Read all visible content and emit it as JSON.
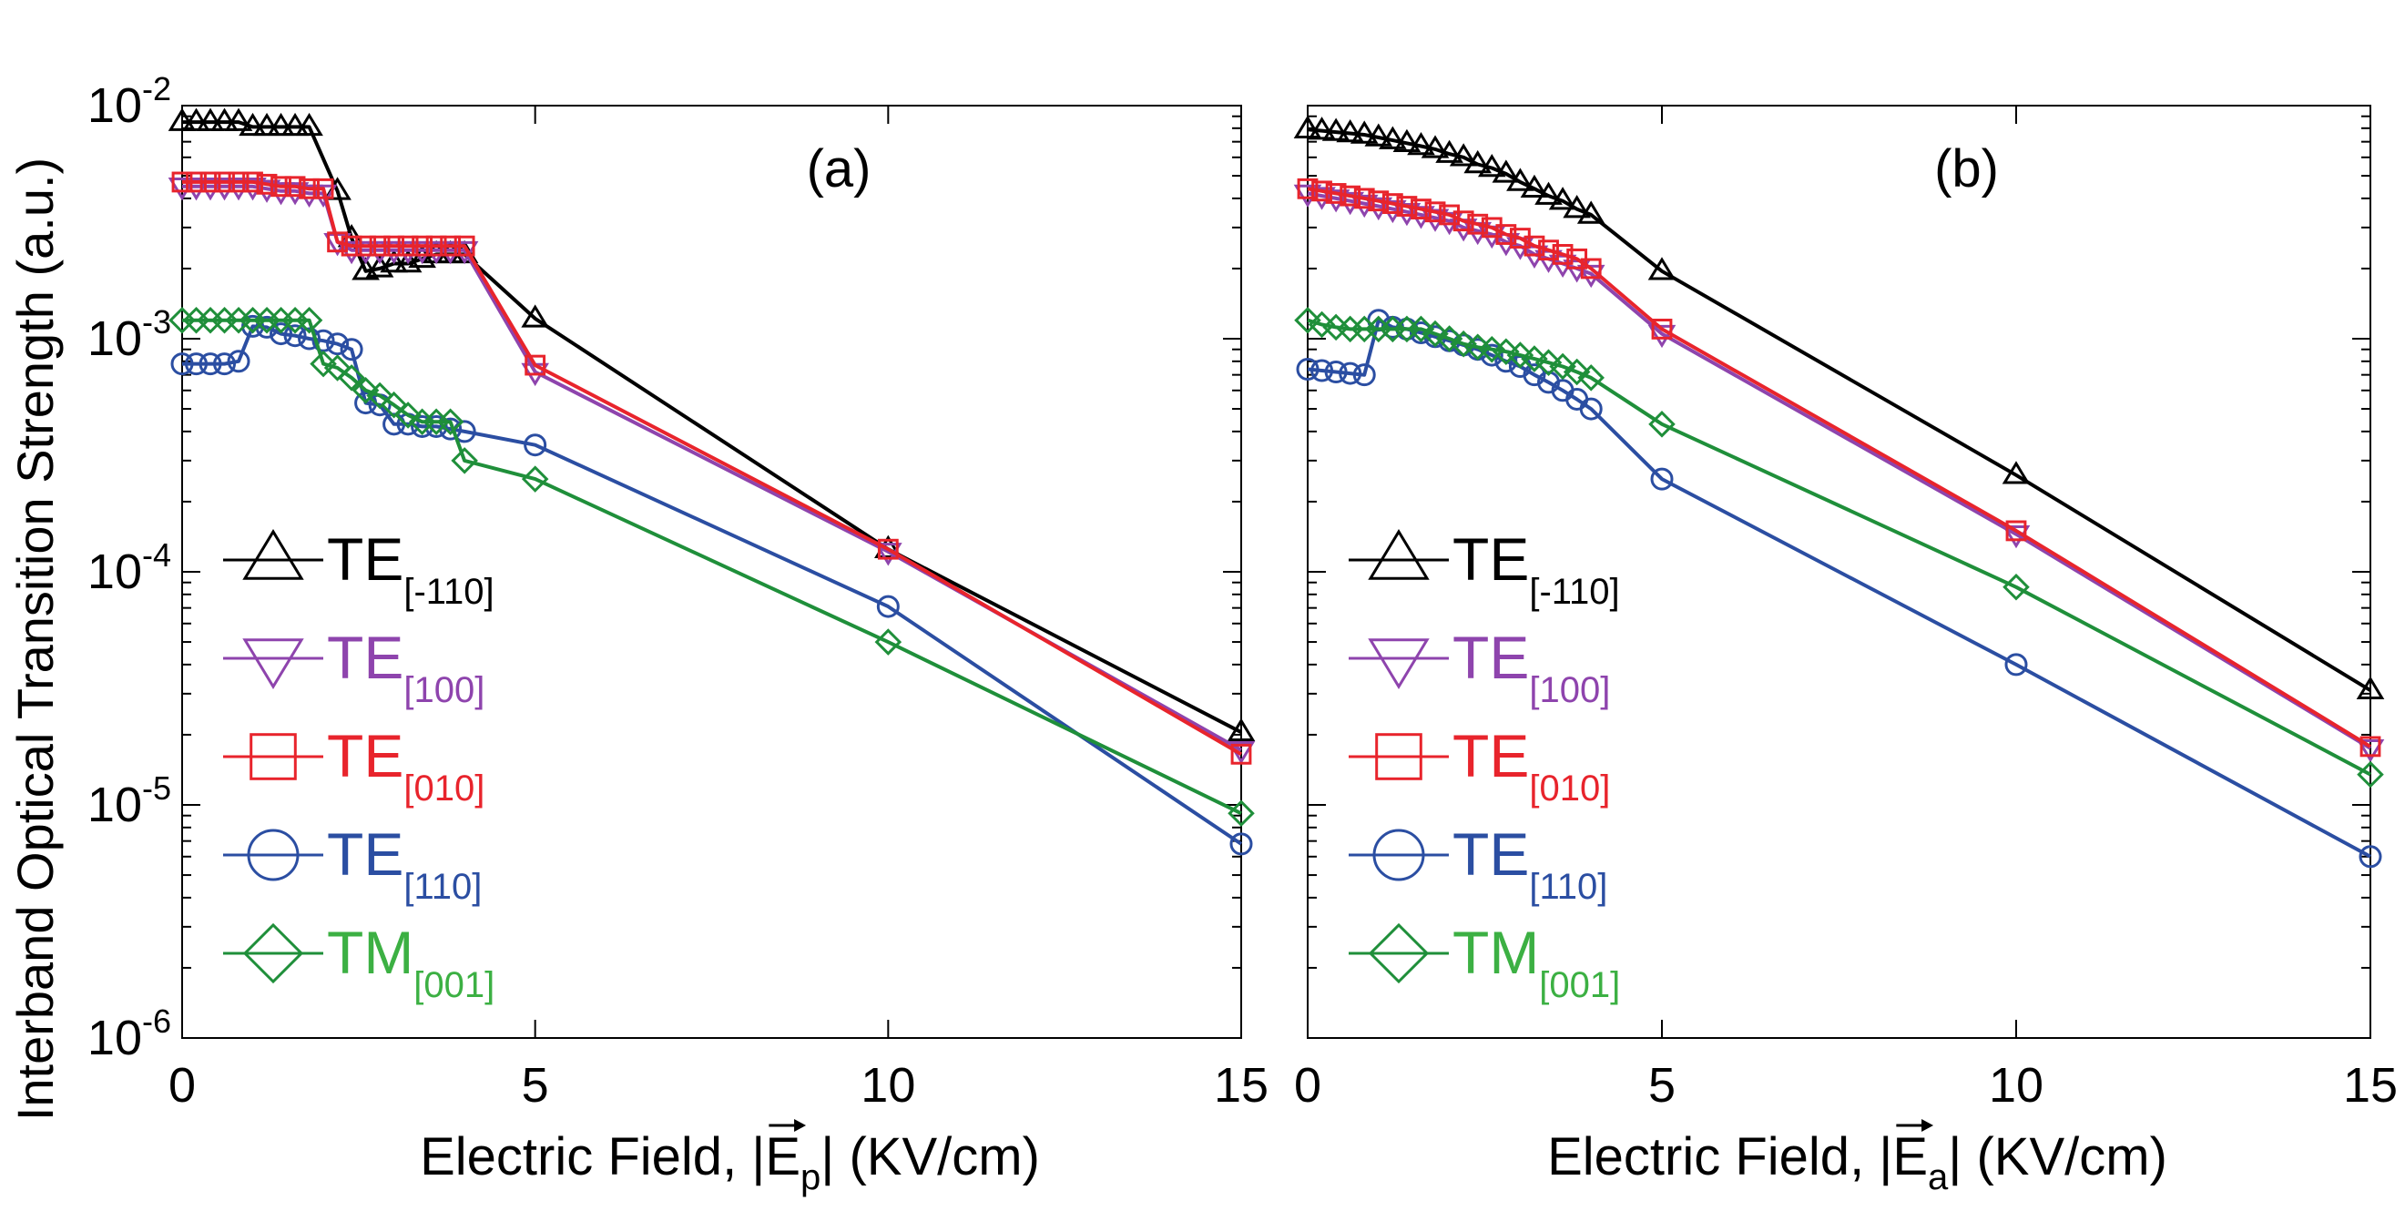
{
  "figure": {
    "ylabel": "Interband Optical Transition Strength (a.u.)"
  },
  "chart_data": [
    {
      "type": "line",
      "panel_label": "(a)",
      "xlabel_prefix": "Electric Field, |",
      "xlabel_vector": "E",
      "xlabel_subscript": "p",
      "xlabel_suffix": "| (KV/cm)",
      "yscale": "log",
      "xlim": [
        0,
        15
      ],
      "ylim": [
        1e-06,
        0.01
      ],
      "xticks": [
        "0",
        "5",
        "10",
        "15"
      ],
      "yticks": [
        {
          "base": "10",
          "exp": "-6"
        },
        {
          "base": "10",
          "exp": "-5"
        },
        {
          "base": "10",
          "exp": "-4"
        },
        {
          "base": "10",
          "exp": "-3"
        },
        {
          "base": "10",
          "exp": "-2"
        }
      ],
      "series": [
        {
          "key": "te-110",
          "name": "TE",
          "sub": "[-110]",
          "color": "#000000",
          "marker": "triangle-up",
          "x": [
            0,
            0.2,
            0.4,
            0.6,
            0.8,
            1.0,
            1.2,
            1.4,
            1.6,
            1.8,
            2.2,
            2.4,
            2.6,
            2.8,
            3.0,
            3.2,
            3.4,
            3.6,
            3.8,
            4.0,
            5,
            10,
            15
          ],
          "y": [
            0.0085,
            0.0085,
            0.0085,
            0.0085,
            0.0085,
            0.0081,
            0.0081,
            0.0081,
            0.0081,
            0.0081,
            0.0043,
            0.0027,
            0.00195,
            0.002,
            0.0021,
            0.0021,
            0.0022,
            0.0023,
            0.0023,
            0.0023,
            0.00122,
            0.000125,
            2.05e-05
          ]
        },
        {
          "key": "te100",
          "name": "TE",
          "sub": "[100]",
          "color": "#8e44ad",
          "marker": "triangle-down",
          "x": [
            0,
            0.2,
            0.4,
            0.6,
            0.8,
            1.0,
            1.2,
            1.4,
            1.6,
            1.8,
            2.0,
            2.2,
            2.4,
            2.6,
            2.8,
            3.0,
            3.2,
            3.4,
            3.6,
            3.8,
            4.0,
            5,
            10,
            15
          ],
          "y": [
            0.0045,
            0.0045,
            0.0045,
            0.0045,
            0.0045,
            0.0045,
            0.0044,
            0.0043,
            0.0043,
            0.0042,
            0.0042,
            0.0026,
            0.0024,
            0.0024,
            0.0024,
            0.0024,
            0.0024,
            0.0024,
            0.0024,
            0.0024,
            0.0024,
            0.00072,
            0.000122,
            1.72e-05
          ]
        },
        {
          "key": "te010",
          "name": "TE",
          "sub": "[010]",
          "color": "#e8242c",
          "marker": "square",
          "x": [
            0,
            0.2,
            0.4,
            0.6,
            0.8,
            1.0,
            1.2,
            1.4,
            1.6,
            1.8,
            2.0,
            2.2,
            2.4,
            2.6,
            2.8,
            3.0,
            3.2,
            3.4,
            3.6,
            3.8,
            4.0,
            5,
            10,
            15
          ],
          "y": [
            0.0047,
            0.0047,
            0.0047,
            0.0047,
            0.0047,
            0.0047,
            0.0046,
            0.0045,
            0.0045,
            0.0044,
            0.0044,
            0.0026,
            0.0025,
            0.0025,
            0.0025,
            0.0025,
            0.0025,
            0.0025,
            0.0025,
            0.0025,
            0.0025,
            0.00077,
            0.000125,
            1.65e-05
          ]
        },
        {
          "key": "te110",
          "name": "TE",
          "sub": "[110]",
          "color": "#2b4ea2",
          "marker": "circle",
          "x": [
            0,
            0.2,
            0.4,
            0.6,
            0.8,
            1.0,
            1.2,
            1.4,
            1.6,
            1.8,
            2.0,
            2.2,
            2.4,
            2.6,
            2.8,
            3.0,
            3.2,
            3.4,
            3.6,
            3.8,
            4.0,
            5,
            10,
            15
          ],
          "y": [
            0.00078,
            0.00078,
            0.00078,
            0.00078,
            0.0008,
            0.00113,
            0.00112,
            0.00105,
            0.00103,
            0.001,
            0.00098,
            0.00095,
            0.0009,
            0.00053,
            0.00052,
            0.00043,
            0.00043,
            0.00042,
            0.00042,
            0.00041,
            0.0004,
            0.00035,
            7.1e-05,
            6.8e-06
          ]
        },
        {
          "key": "tm001",
          "name": "TM",
          "sub": "[001]",
          "color": "#1f8f3a",
          "marker": "diamond",
          "x": [
            0,
            0.2,
            0.4,
            0.6,
            0.8,
            1.0,
            1.2,
            1.4,
            1.6,
            1.8,
            2.0,
            2.2,
            2.4,
            2.6,
            2.8,
            3.0,
            3.2,
            3.4,
            3.6,
            3.8,
            4.0,
            5,
            10,
            15
          ],
          "y": [
            0.0012,
            0.0012,
            0.0012,
            0.0012,
            0.0012,
            0.0012,
            0.0012,
            0.0012,
            0.0012,
            0.0012,
            0.00078,
            0.00075,
            0.00068,
            0.0006,
            0.00057,
            0.00052,
            0.00047,
            0.00044,
            0.00044,
            0.00044,
            0.0003,
            0.00025,
            5e-05,
            9.2e-06
          ]
        }
      ]
    },
    {
      "type": "line",
      "panel_label": "(b)",
      "xlabel_prefix": "Electric Field, |",
      "xlabel_vector": "E",
      "xlabel_subscript": "a",
      "xlabel_suffix": "| (KV/cm)",
      "yscale": "log",
      "xlim": [
        0,
        15
      ],
      "ylim": [
        1e-06,
        0.01
      ],
      "xticks": [
        "0",
        "5",
        "10",
        "15"
      ],
      "series": [
        {
          "key": "te-110",
          "name": "TE",
          "sub": "[-110]",
          "color": "#000000",
          "marker": "triangle-up",
          "x": [
            0,
            0.2,
            0.4,
            0.6,
            0.8,
            1.0,
            1.2,
            1.4,
            1.6,
            1.8,
            2.0,
            2.2,
            2.4,
            2.6,
            2.8,
            3.0,
            3.2,
            3.4,
            3.6,
            3.8,
            4.0,
            5,
            10,
            15
          ],
          "y": [
            0.0079,
            0.0078,
            0.0077,
            0.0076,
            0.0075,
            0.0073,
            0.0071,
            0.0069,
            0.0067,
            0.0065,
            0.0062,
            0.006,
            0.0056,
            0.0054,
            0.0051,
            0.0047,
            0.0044,
            0.0041,
            0.0039,
            0.0036,
            0.0034,
            0.00195,
            0.00026,
            3.1e-05
          ]
        },
        {
          "key": "te100",
          "name": "TE",
          "sub": "[100]",
          "color": "#8e44ad",
          "marker": "triangle-down",
          "x": [
            0,
            0.2,
            0.4,
            0.6,
            0.8,
            1.0,
            1.2,
            1.4,
            1.6,
            1.8,
            2.0,
            2.2,
            2.4,
            2.6,
            2.8,
            3.0,
            3.2,
            3.4,
            3.6,
            3.8,
            4.0,
            5,
            10,
            15
          ],
          "y": [
            0.0042,
            0.0041,
            0.004,
            0.0039,
            0.0038,
            0.0037,
            0.0036,
            0.0035,
            0.0034,
            0.0033,
            0.0032,
            0.003,
            0.0029,
            0.0028,
            0.0026,
            0.0025,
            0.0023,
            0.0022,
            0.0021,
            0.002,
            0.0019,
            0.00105,
            0.000145,
            1.75e-05
          ]
        },
        {
          "key": "te010",
          "name": "TE",
          "sub": "[010]",
          "color": "#e8242c",
          "marker": "square",
          "x": [
            0,
            0.2,
            0.4,
            0.6,
            0.8,
            1.0,
            1.2,
            1.4,
            1.6,
            1.8,
            2.0,
            2.2,
            2.4,
            2.6,
            2.8,
            3.0,
            3.2,
            3.4,
            3.6,
            3.8,
            4.0,
            5,
            10,
            15
          ],
          "y": [
            0.0044,
            0.0043,
            0.0042,
            0.0041,
            0.004,
            0.0039,
            0.0038,
            0.0037,
            0.0036,
            0.0035,
            0.0034,
            0.0032,
            0.0031,
            0.003,
            0.0028,
            0.0027,
            0.0025,
            0.0024,
            0.0023,
            0.0022,
            0.002,
            0.0011,
            0.00015,
            1.78e-05
          ]
        },
        {
          "key": "te110",
          "name": "TE",
          "sub": "[110]",
          "color": "#2b4ea2",
          "marker": "circle",
          "x": [
            0,
            0.2,
            0.4,
            0.6,
            0.8,
            1.0,
            1.2,
            1.4,
            1.6,
            1.8,
            2.0,
            2.2,
            2.4,
            2.6,
            2.8,
            3.0,
            3.2,
            3.4,
            3.6,
            3.8,
            4.0,
            5,
            10,
            15
          ],
          "y": [
            0.00074,
            0.00073,
            0.00072,
            0.00071,
            0.0007,
            0.0012,
            0.00112,
            0.0011,
            0.00106,
            0.00102,
            0.00098,
            0.00094,
            0.0009,
            0.00085,
            0.0008,
            0.00076,
            0.0007,
            0.00065,
            0.0006,
            0.00055,
            0.0005,
            0.00025,
            4e-05,
            6e-06
          ]
        },
        {
          "key": "tm001",
          "name": "TM",
          "sub": "[001]",
          "color": "#1f8f3a",
          "marker": "diamond",
          "x": [
            0,
            0.2,
            0.4,
            0.6,
            0.8,
            1.0,
            1.2,
            1.4,
            1.6,
            1.8,
            2.0,
            2.2,
            2.4,
            2.6,
            2.8,
            3.0,
            3.2,
            3.4,
            3.6,
            3.8,
            4.0,
            5,
            10,
            15
          ],
          "y": [
            0.0012,
            0.00115,
            0.00112,
            0.0011,
            0.0011,
            0.0011,
            0.0011,
            0.0011,
            0.0011,
            0.00105,
            0.001,
            0.00095,
            0.00092,
            0.0009,
            0.00088,
            0.00085,
            0.00082,
            0.00079,
            0.00076,
            0.00072,
            0.00068,
            0.00043,
            8.6e-05,
            1.35e-05
          ]
        }
      ]
    }
  ],
  "legend": {
    "text_colors": {
      "te-110": "#000000",
      "te100": "#8e44ad",
      "te010": "#e8242c",
      "te110": "#2b4ea2",
      "tm001": "#3cb043"
    }
  }
}
